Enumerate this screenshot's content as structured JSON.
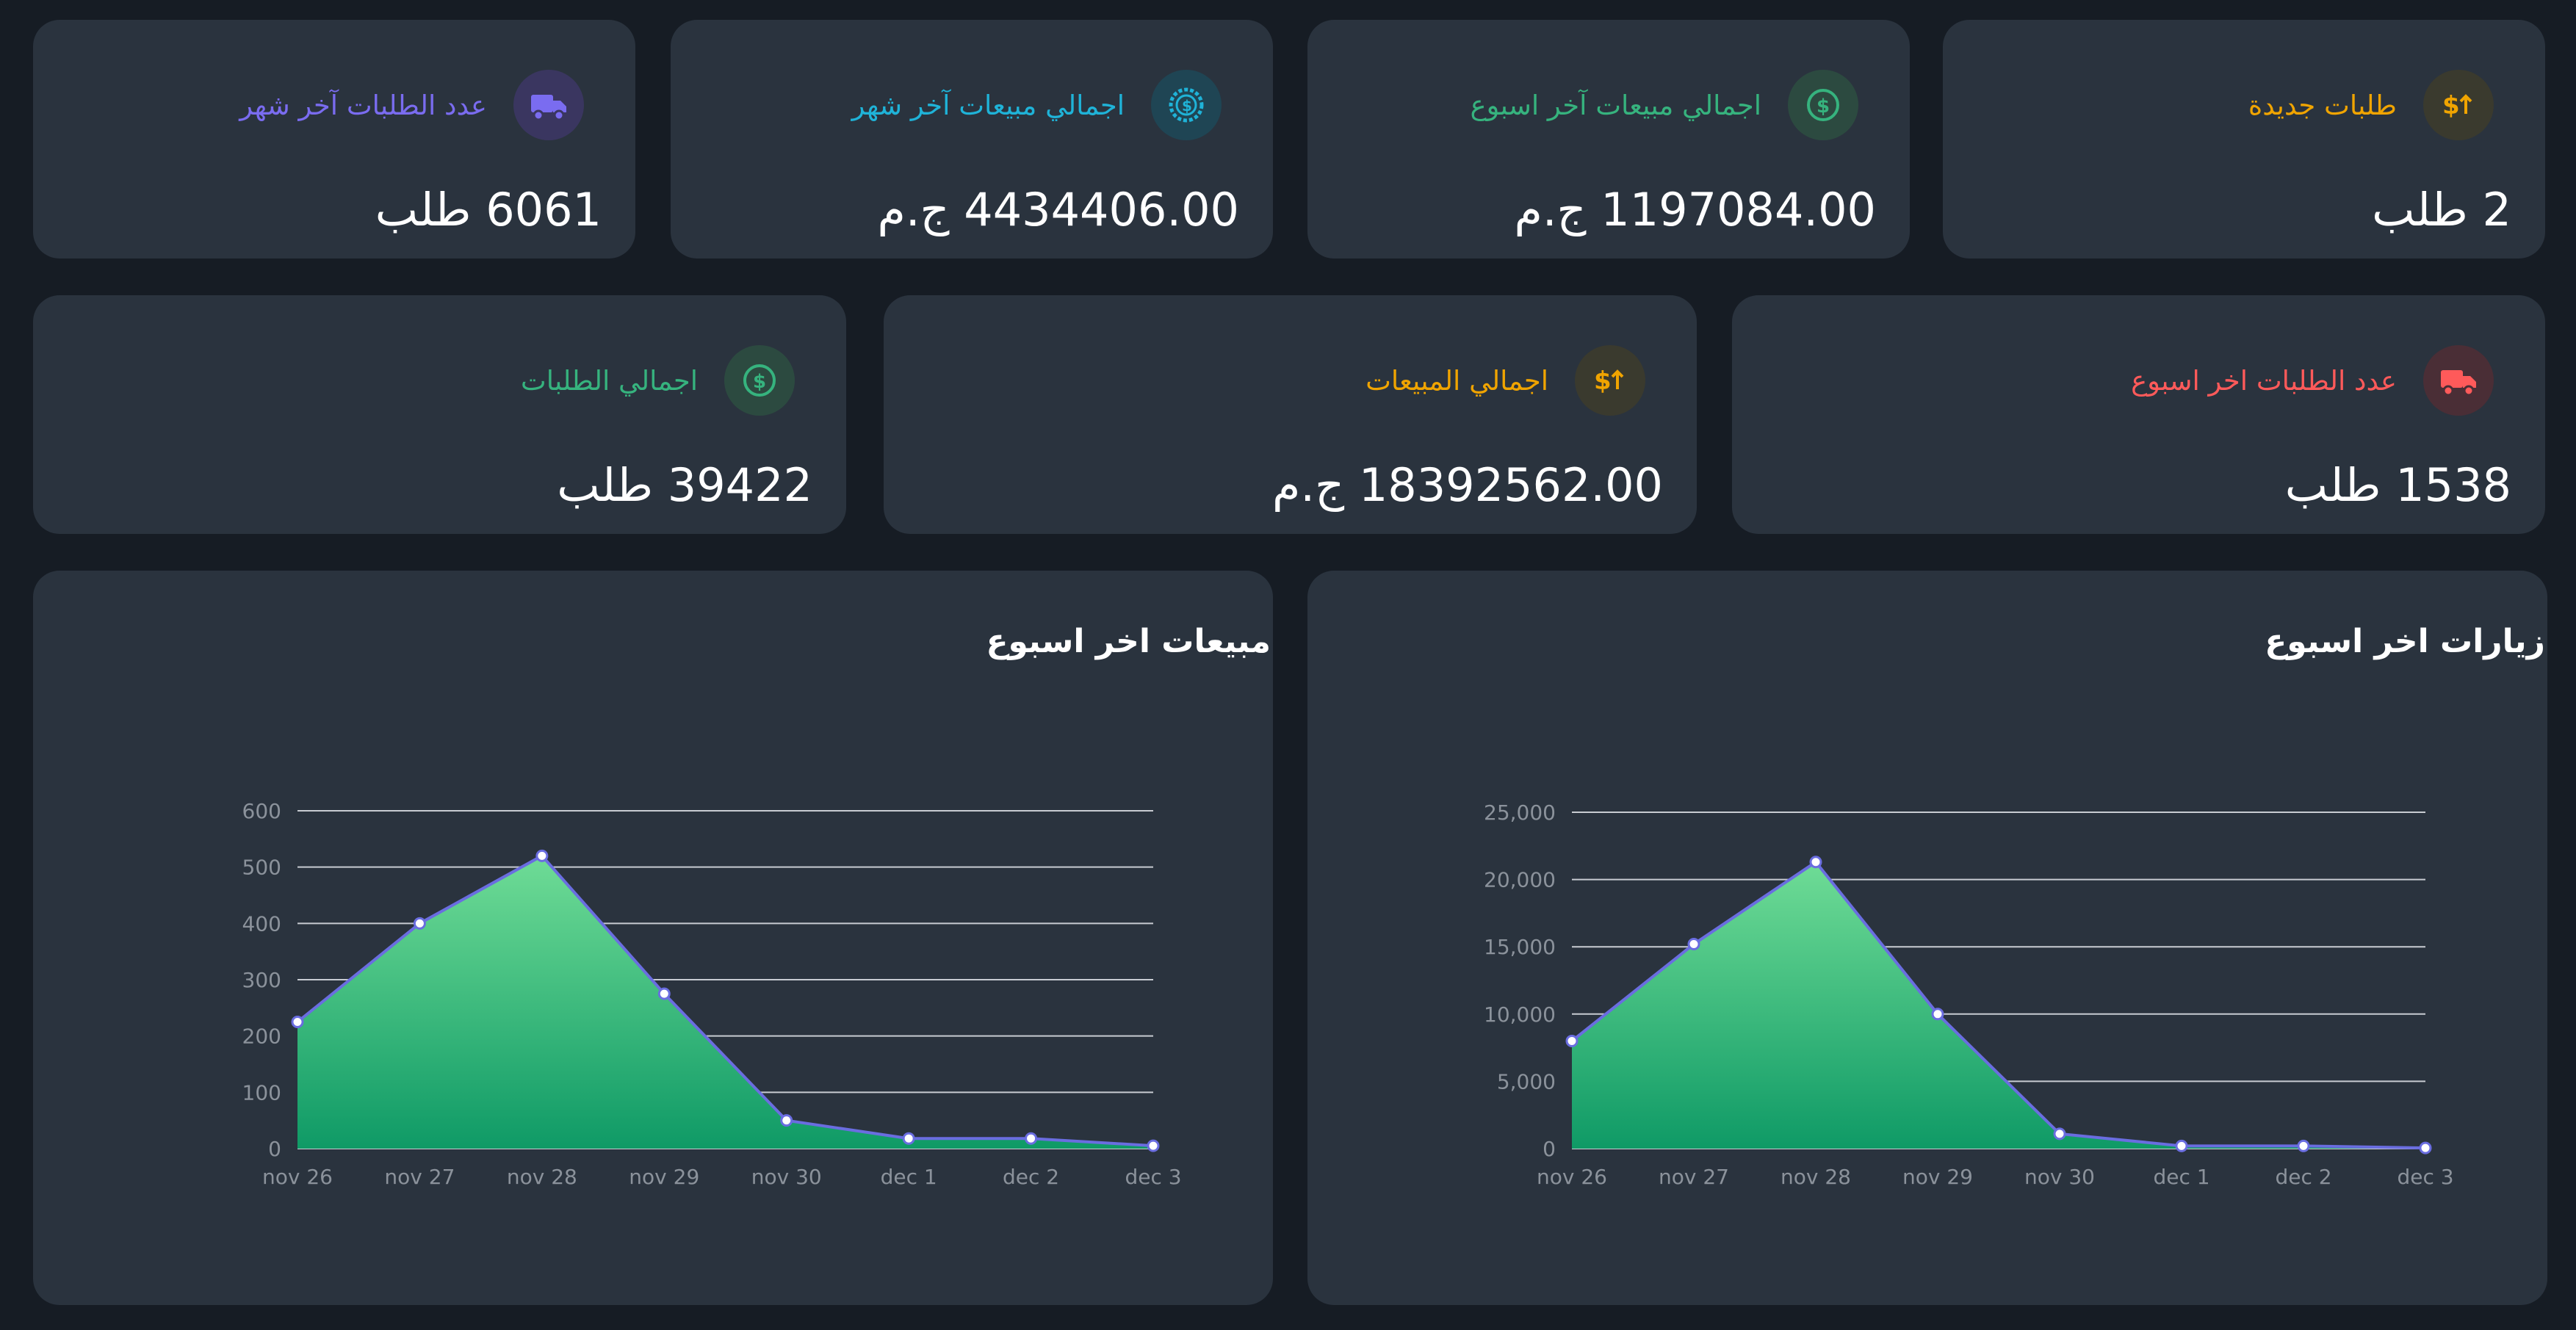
{
  "stats_row1": [
    {
      "label": "طلبات جديدة",
      "value": "2 طلب",
      "color": "#f0a400",
      "icon": "dollar-arrow-icon"
    },
    {
      "label": "اجمالي مبيعات آخر اسبوع",
      "value": "1197084.00 ج.م",
      "color": "#36b37e",
      "icon": "dollar-circle-icon"
    },
    {
      "label": "اجمالي مبيعات آخر شهر",
      "value": "4434406.00 ج.م",
      "color": "#1fb3d8",
      "icon": "dollar-gear-icon"
    },
    {
      "label": "عدد الطلبات آخر شهر",
      "value": "6061 طلب",
      "color": "#7a6cf0",
      "icon": "truck-icon"
    }
  ],
  "stats_row2": [
    {
      "label": "عدد الطلبات اخر اسبوع",
      "value": "1538 طلب",
      "color": "#ff5a5a",
      "icon": "truck-icon"
    },
    {
      "label": "اجمالي المبيعات",
      "value": "18392562.00 ج.م",
      "color": "#f0a400",
      "icon": "dollar-arrow-icon"
    },
    {
      "label": "اجمالي الطلبات",
      "value": "39422 طلب",
      "color": "#36b37e",
      "icon": "dollar-circle-icon"
    }
  ],
  "chart_data": [
    {
      "type": "area",
      "title": "زيارات اخر اسبوع",
      "categories": [
        "nov 26",
        "nov 27",
        "nov 28",
        "nov 29",
        "nov 30",
        "dec 1",
        "dec 2",
        "dec 3"
      ],
      "series": [
        {
          "values": [
            8000,
            15200,
            21300,
            10000,
            1100,
            200,
            200,
            50
          ]
        }
      ],
      "ylim": [
        0,
        25000
      ],
      "yticks": [
        "0",
        "5,000",
        "10,000",
        "15,000",
        "20,000",
        "25,000"
      ],
      "grid": true
    },
    {
      "type": "area",
      "title": "مبيعات اخر اسبوع",
      "categories": [
        "nov 26",
        "nov 27",
        "nov 28",
        "nov 29",
        "nov 30",
        "dec 1",
        "dec 2",
        "dec 3"
      ],
      "series": [
        {
          "values": [
            225,
            400,
            520,
            275,
            50,
            18,
            18,
            5
          ]
        }
      ],
      "ylim": [
        0,
        600
      ],
      "yticks": [
        "0",
        "100",
        "200",
        "300",
        "400",
        "500",
        "600"
      ],
      "grid": true
    }
  ]
}
